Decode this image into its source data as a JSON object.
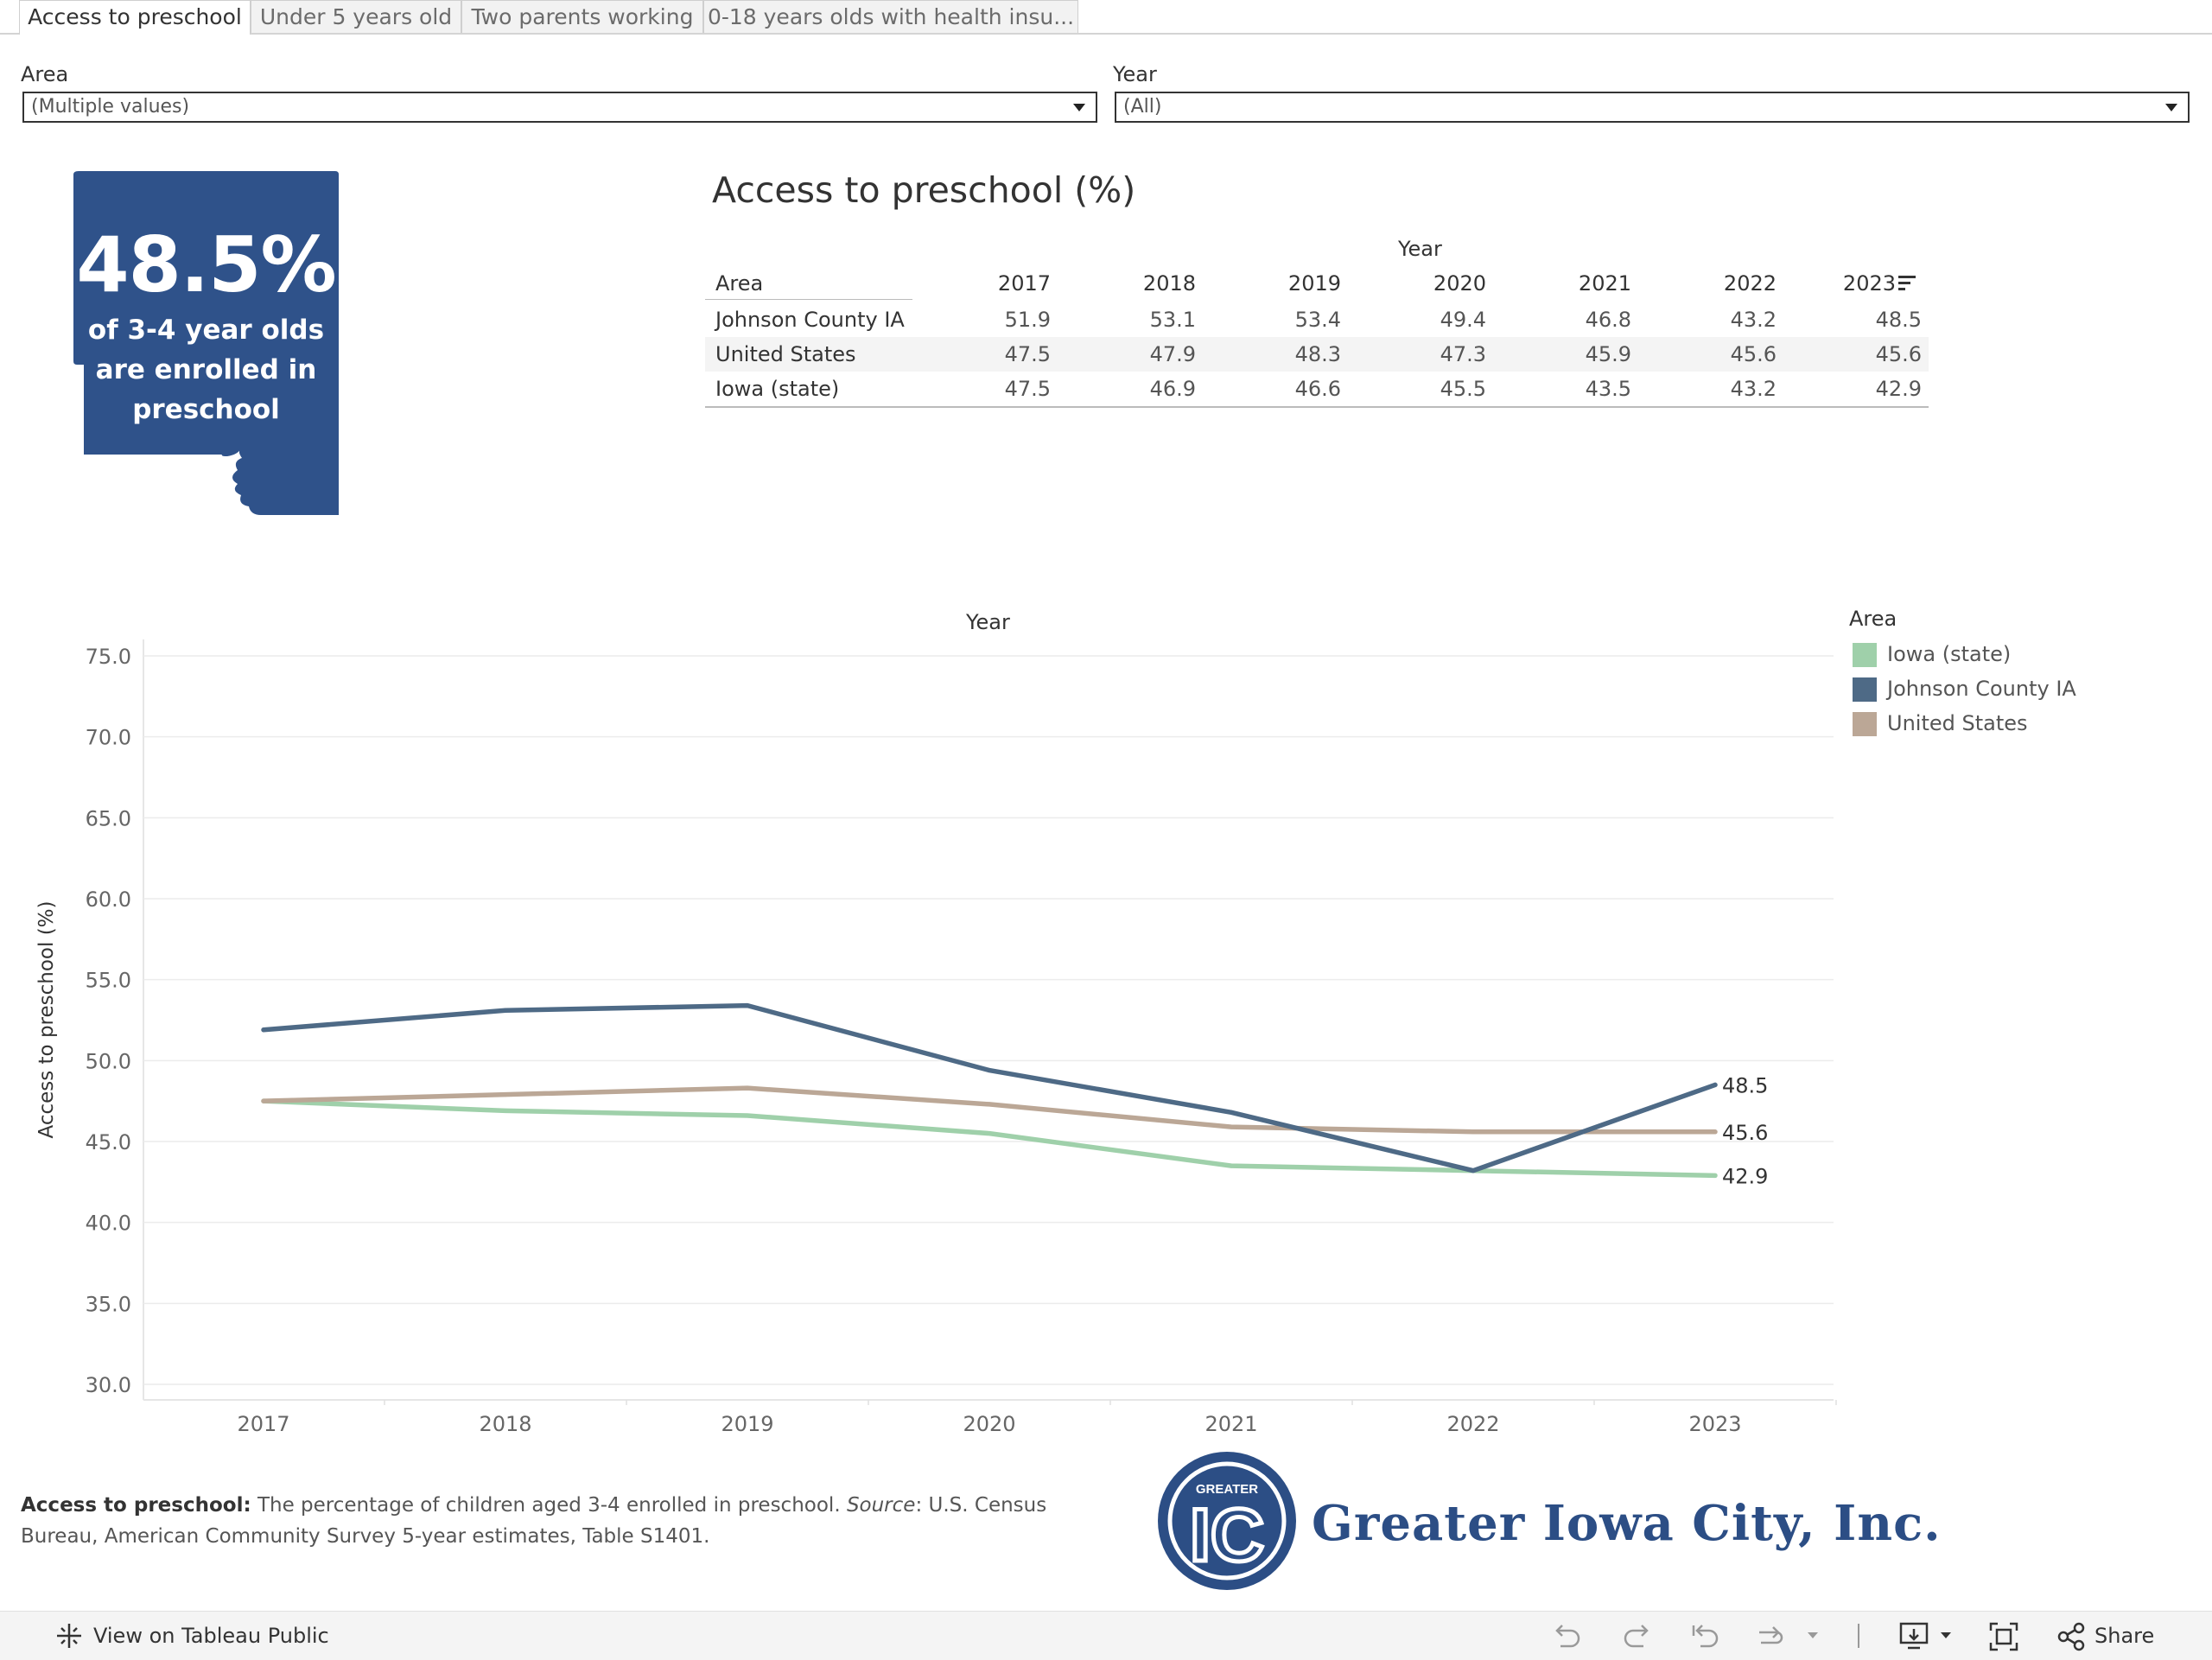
{
  "tabs": [
    {
      "label": "Access to preschool",
      "active": true
    },
    {
      "label": "Under 5 years old",
      "active": false
    },
    {
      "label": "Two parents working",
      "active": false
    },
    {
      "label": "0-18 years olds with health insu...",
      "active": false
    }
  ],
  "filters": {
    "area": {
      "label": "Area",
      "value": "(Multiple values)"
    },
    "year": {
      "label": "Year",
      "value": "(All)"
    }
  },
  "kpi": {
    "value": "48.5%",
    "line1": "of 3-4 year olds",
    "line2": "are enrolled in",
    "line3": "preschool",
    "color": "#2f528a"
  },
  "table": {
    "title": "Access to preschool (%)",
    "year_header": "Year",
    "area_header": "Area",
    "years": [
      "2017",
      "2018",
      "2019",
      "2020",
      "2021",
      "2022",
      "2023"
    ],
    "rows": [
      {
        "area": "Johnson County IA",
        "values": [
          "51.9",
          "53.1",
          "53.4",
          "49.4",
          "46.8",
          "43.2",
          "48.5"
        ]
      },
      {
        "area": "United States",
        "values": [
          "47.5",
          "47.9",
          "48.3",
          "47.3",
          "45.9",
          "45.6",
          "45.6"
        ]
      },
      {
        "area": "Iowa (state)",
        "values": [
          "47.5",
          "46.9",
          "46.6",
          "45.5",
          "43.5",
          "43.2",
          "42.9"
        ]
      }
    ]
  },
  "chart_data": {
    "type": "line",
    "title": "Year",
    "xlabel": "",
    "ylabel": "Access to preschool (%)",
    "x": [
      "2017",
      "2018",
      "2019",
      "2020",
      "2021",
      "2022",
      "2023"
    ],
    "ylim": [
      30,
      75
    ],
    "yticks": [
      "75.0",
      "70.0",
      "65.0",
      "60.0",
      "55.0",
      "50.0",
      "45.0",
      "40.0",
      "35.0",
      "30.0"
    ],
    "grid": true,
    "legend_title": "Area",
    "legend_position": "right",
    "series": [
      {
        "name": "Iowa (state)",
        "color": "#9fd0aa",
        "values": [
          47.5,
          46.9,
          46.6,
          45.5,
          43.5,
          43.2,
          42.9
        ],
        "end_label": "42.9"
      },
      {
        "name": "Johnson County IA",
        "color": "#4e6a86",
        "values": [
          51.9,
          53.1,
          53.4,
          49.4,
          46.8,
          43.2,
          48.5
        ],
        "end_label": "48.5"
      },
      {
        "name": "United States",
        "color": "#bba796",
        "values": [
          47.5,
          47.9,
          48.3,
          47.3,
          45.9,
          45.6,
          45.6
        ],
        "end_label": "45.6"
      }
    ]
  },
  "note": {
    "bold": "Access to preschool:",
    "text1": " The percentage of children aged 3-4 enrolled in preschool. ",
    "source_label": "Source",
    "text2": ": U.S. Census Bureau, American Community Survey 5-year estimates, Table S1401."
  },
  "logo": {
    "badge_small": "GREATER",
    "badge_letters": "IC",
    "text": "Greater Iowa City, Inc.",
    "color": "#2c4e85"
  },
  "bottombar": {
    "view_label": "View on Tableau Public",
    "share_label": "Share",
    "icons": [
      "undo-icon",
      "redo-icon",
      "revert-icon",
      "refresh-icon",
      "download-icon",
      "fullscreen-icon",
      "share-icon"
    ]
  }
}
